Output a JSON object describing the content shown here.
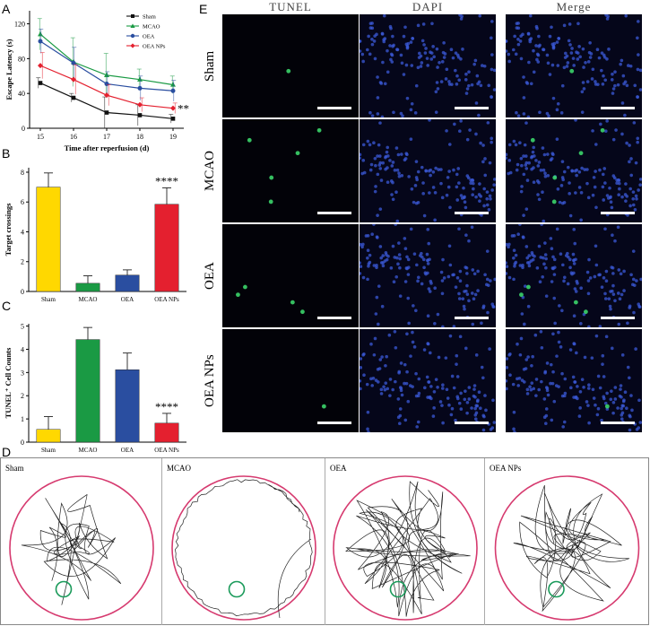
{
  "panels": {
    "a": "A",
    "b": "B",
    "c": "C",
    "d": "D",
    "e": "E"
  },
  "colors": {
    "sham": "#ffd800",
    "mcao": "#1a9a44",
    "oea": "#2a4ea0",
    "oea_nps": "#e4202f",
    "pool": "#d63a6f",
    "platform": "#1a9a5a"
  },
  "chart_data": [
    {
      "type": "line",
      "ylabel": "Escape Latency (s)",
      "xlabel": "Time after reperfusion (d)",
      "x": [
        15,
        16,
        17,
        18,
        19
      ],
      "xticks": [
        "15",
        "16",
        "17",
        "18",
        "19"
      ],
      "yticks": [
        "0",
        "40",
        "80",
        "120"
      ],
      "ylim": [
        0,
        135
      ],
      "legend_position": "top-right",
      "series": [
        {
          "name": "Sham",
          "values": [
            52,
            35,
            18,
            15,
            11
          ],
          "err": [
            6,
            5,
            18,
            12,
            5
          ],
          "color": "#111111",
          "marker": "square"
        },
        {
          "name": "MCAO",
          "values": [
            108,
            76,
            61,
            56,
            50
          ],
          "err": [
            18,
            28,
            25,
            12,
            10
          ],
          "color": "#1a9a44",
          "marker": "triangle"
        },
        {
          "name": "OEA",
          "values": [
            100,
            75,
            51,
            46,
            43
          ],
          "err": [
            14,
            18,
            14,
            14,
            12
          ],
          "color": "#2a4ea0",
          "marker": "circle"
        },
        {
          "name": "OEA NPs",
          "values": [
            72,
            56,
            38,
            27,
            23
          ],
          "err": [
            15,
            17,
            12,
            8,
            6
          ],
          "color": "#e4202f",
          "marker": "diamond"
        }
      ],
      "annotations": [
        "**"
      ]
    },
    {
      "type": "bar",
      "ylabel": "Target crossings",
      "categories": [
        "Sham",
        "MCAO",
        "OEA",
        "OEA NPs"
      ],
      "values": [
        7.0,
        0.55,
        1.1,
        5.85
      ],
      "err": [
        0.95,
        0.5,
        0.35,
        1.1
      ],
      "yticks": [
        "0",
        "2",
        "4",
        "6",
        "8"
      ],
      "ylim": [
        0,
        8.3
      ],
      "annotations": [
        "****"
      ]
    },
    {
      "type": "bar",
      "ylabel": "TUNEL⁺ Cell Counts",
      "categories": [
        "Sham",
        "MCAO",
        "OEA",
        "OEA NPs"
      ],
      "values": [
        0.55,
        4.42,
        3.12,
        0.82
      ],
      "err": [
        0.55,
        0.52,
        0.72,
        0.42
      ],
      "yticks": [
        "0",
        "1",
        "2",
        "3",
        "4",
        "5"
      ],
      "ylim": [
        0,
        5.1
      ],
      "annotations": [
        "****"
      ]
    }
  ],
  "micrographs": {
    "columns": [
      "TUNEL",
      "DAPI",
      "Merge"
    ],
    "rows": [
      "Sham",
      "MCAO",
      "OEA",
      "OEA NPs"
    ]
  },
  "tracks": {
    "labels": [
      "Sham",
      "MCAO",
      "OEA",
      "OEA NPs"
    ]
  }
}
